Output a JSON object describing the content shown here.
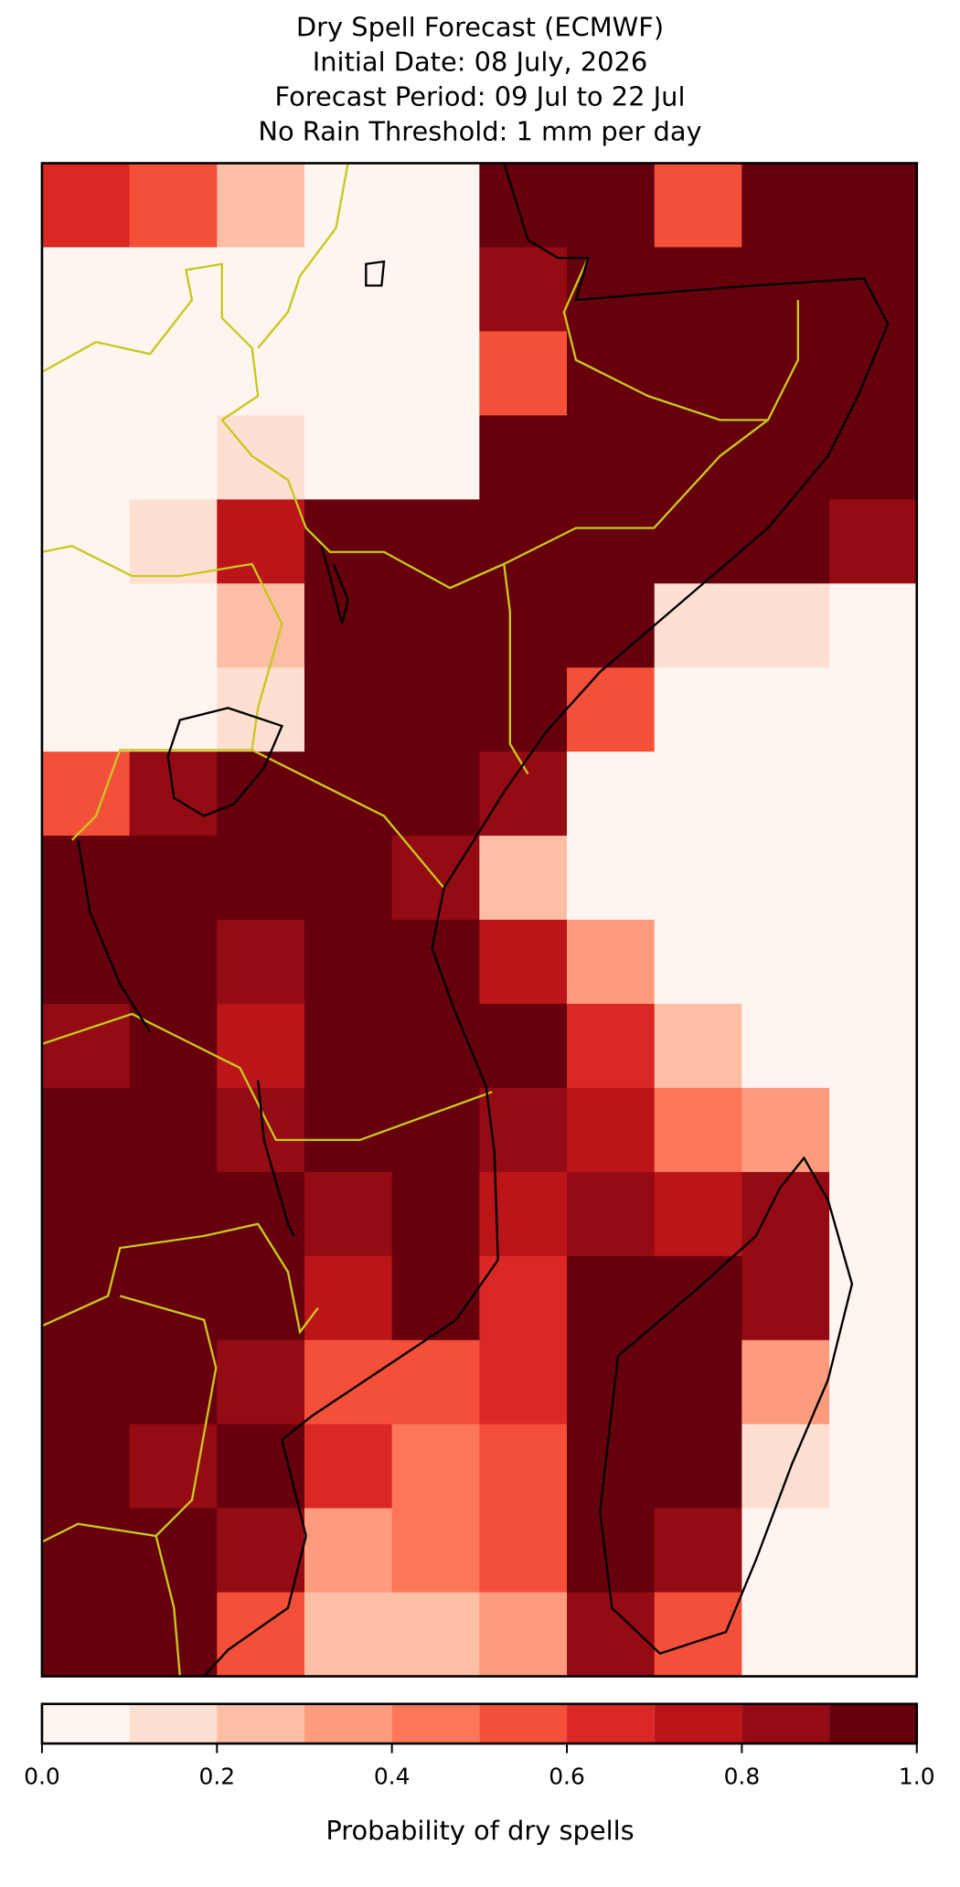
{
  "title": [
    "Dry Spell Forecast (ECMWF)",
    "Initial Date: 08 July, 2026",
    "Forecast Period: 09 Jul to 22 Jul",
    "No Rain Threshold: 1 mm per day"
  ],
  "map": {
    "cells": [
      [
        0.6,
        0.5,
        0.2,
        0,
        0,
        0.9,
        1,
        0.5,
        1,
        1
      ],
      [
        0,
        0,
        0,
        0,
        0,
        0.8,
        1,
        1,
        1,
        1
      ],
      [
        0,
        0,
        0,
        0,
        0,
        0.5,
        1,
        1,
        1,
        1
      ],
      [
        0,
        0,
        0.1,
        0,
        0,
        0.9,
        1,
        1,
        1,
        1
      ],
      [
        0,
        0.1,
        0.7,
        0.9,
        1,
        1,
        1,
        1,
        0.9,
        0.8
      ],
      [
        0,
        0,
        0.2,
        1,
        1,
        1,
        1,
        0.1,
        0.1,
        0
      ],
      [
        0,
        0,
        0.1,
        0.9,
        0.9,
        1,
        0.5,
        0,
        0,
        0
      ],
      [
        0.5,
        0.8,
        0.9,
        1,
        1,
        0.8,
        0,
        0,
        0,
        0
      ],
      [
        0.9,
        1,
        0.9,
        1,
        0.8,
        0.2,
        0,
        0,
        0,
        0
      ],
      [
        0.9,
        0.9,
        0.8,
        1,
        0.9,
        0.7,
        0.3,
        0,
        0,
        0
      ],
      [
        0.8,
        0.9,
        0.7,
        1,
        1,
        0.9,
        0.6,
        0.2,
        0,
        0
      ],
      [
        1,
        1,
        0.8,
        0.9,
        1,
        0.8,
        0.7,
        0.4,
        0.3,
        0
      ],
      [
        1,
        1,
        0.9,
        0.8,
        1,
        0.7,
        0.8,
        0.7,
        0.8,
        0
      ],
      [
        0.9,
        1,
        0.9,
        0.7,
        0.9,
        0.6,
        0.9,
        1,
        0.8,
        0
      ],
      [
        1,
        0.9,
        0.8,
        0.5,
        0.5,
        0.6,
        1,
        0.9,
        0.3,
        0
      ],
      [
        1,
        0.8,
        0.9,
        0.6,
        0.4,
        0.5,
        1,
        0.9,
        0.1,
        0
      ],
      [
        0.9,
        0.9,
        0.8,
        0.3,
        0.4,
        0.5,
        1,
        0.8,
        0,
        0
      ],
      [
        1,
        0.9,
        0.5,
        0.2,
        0.2,
        0.3,
        0.8,
        0.5,
        0,
        0
      ]
    ]
  },
  "colorbar": {
    "label": "Probability of dry spells",
    "bounds": [
      0,
      0.1,
      0.2,
      0.3,
      0.4,
      0.5,
      0.6,
      0.7,
      0.8,
      0.9,
      1
    ],
    "colors": [
      "#fff5f0",
      "#fee0d3",
      "#fcbea5",
      "#fc9c7d",
      "#fb7757",
      "#f44f39",
      "#db2824",
      "#bb151a",
      "#940b13",
      "#67000d"
    ],
    "ticks": [
      {
        "value": 0,
        "label": "0.0"
      },
      0.2,
      0.4,
      0.6,
      0.8,
      {
        "value": 1,
        "label": "1.0"
      }
    ]
  }
}
